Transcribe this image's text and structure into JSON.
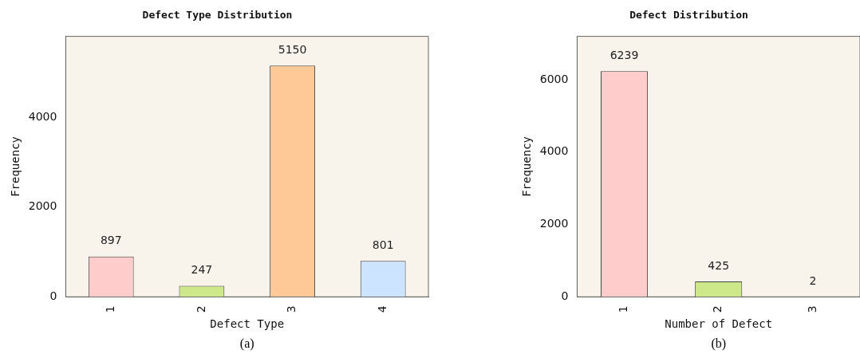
{
  "chart_data": [
    {
      "type": "bar",
      "title": "Defect Type Distribution",
      "xlabel": "Defect Type",
      "ylabel": "Frequency",
      "categories": [
        "1",
        "2",
        "3",
        "4"
      ],
      "values": [
        897,
        247,
        5150,
        801
      ],
      "data_labels": true,
      "colors": [
        "#ffcccc",
        "#cce888",
        "#ffc896",
        "#cce4ff"
      ],
      "ylim": [
        0,
        5800
      ],
      "yticks": [
        0,
        2000,
        4000
      ],
      "grid": false,
      "legend": false,
      "annotations": [
        "(a)"
      ]
    },
    {
      "type": "bar",
      "title": "Defect Distribution",
      "xlabel": "Number of Defect",
      "ylabel": "Frequency",
      "categories": [
        "1",
        "2",
        "3"
      ],
      "values": [
        6239,
        425,
        2
      ],
      "data_labels": true,
      "colors": [
        "#ffcccc",
        "#cce888",
        "#ffc896"
      ],
      "ylim": [
        0,
        7200
      ],
      "yticks": [
        0,
        2000,
        4000,
        6000
      ],
      "grid": false,
      "legend": false,
      "annotations": [
        "(b)"
      ]
    }
  ]
}
